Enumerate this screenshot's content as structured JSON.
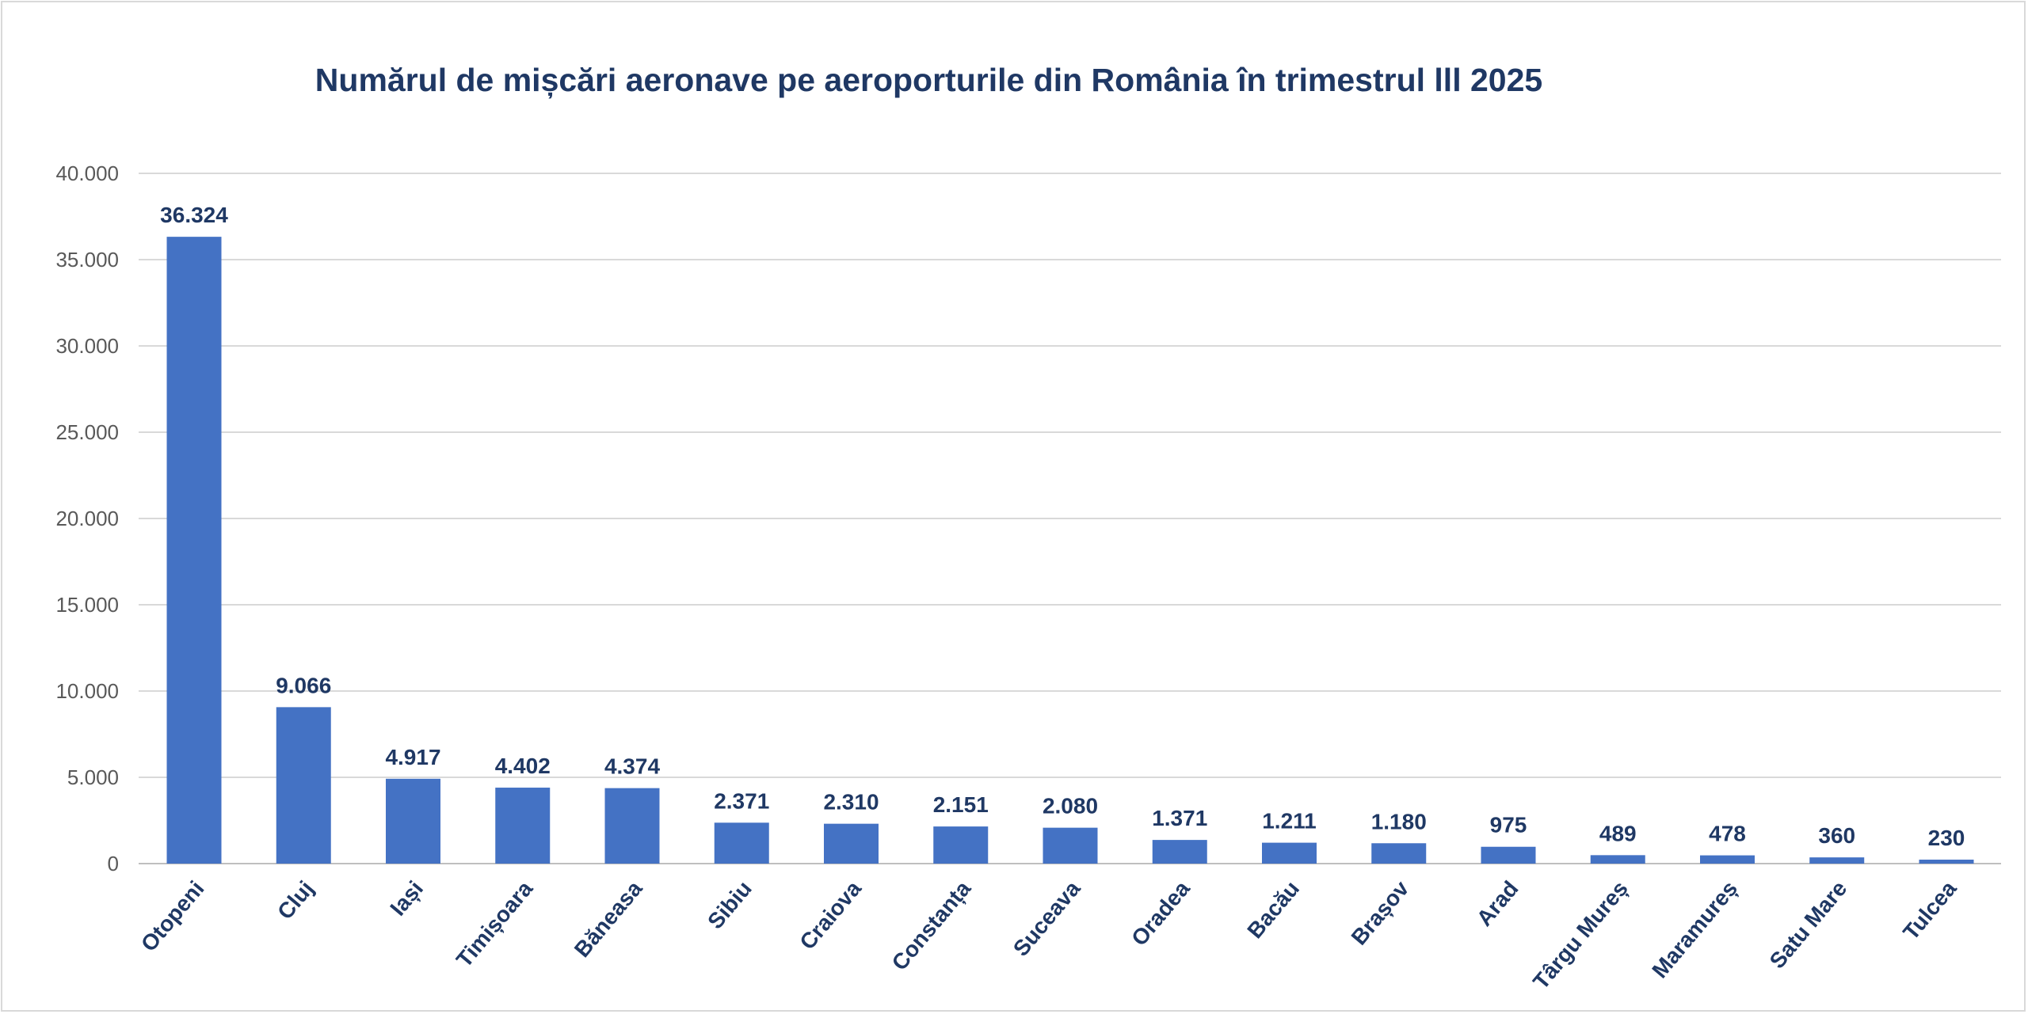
{
  "chart_data": {
    "type": "bar",
    "title": "Numărul de mișcări aeronave pe aeroporturile din România în trimestrul lll 2025",
    "xlabel": "",
    "ylabel": "",
    "categories": [
      "Otopeni",
      "Cluj",
      "Iași",
      "Timișoara",
      "Băneasa",
      "Sibiu",
      "Craiova",
      "Constanța",
      "Suceava",
      "Oradea",
      "Bacău",
      "Brașov",
      "Arad",
      "Târgu Mureș",
      "Maramureș",
      "Satu Mare",
      "Tulcea"
    ],
    "values": [
      36324,
      9066,
      4917,
      4402,
      4374,
      2371,
      2310,
      2151,
      2080,
      1371,
      1211,
      1180,
      975,
      489,
      478,
      360,
      230
    ],
    "data_labels": [
      "36.324",
      "9.066",
      "4.917",
      "4.402",
      "4.374",
      "2.371",
      "2.310",
      "2.151",
      "2.080",
      "1.371",
      "1.211",
      "1.180",
      "975",
      "489",
      "478",
      "360",
      "230"
    ],
    "ylim": [
      0,
      40000
    ],
    "yticks": [
      0,
      5000,
      10000,
      15000,
      20000,
      25000,
      30000,
      35000,
      40000
    ],
    "ytick_labels": [
      "0",
      "5.000",
      "10.000",
      "15.000",
      "20.000",
      "25.000",
      "30.000",
      "35.000",
      "40.000"
    ],
    "grid": true,
    "legend": "none",
    "bar_color": "#4472c4",
    "label_color": "#1f3864"
  }
}
